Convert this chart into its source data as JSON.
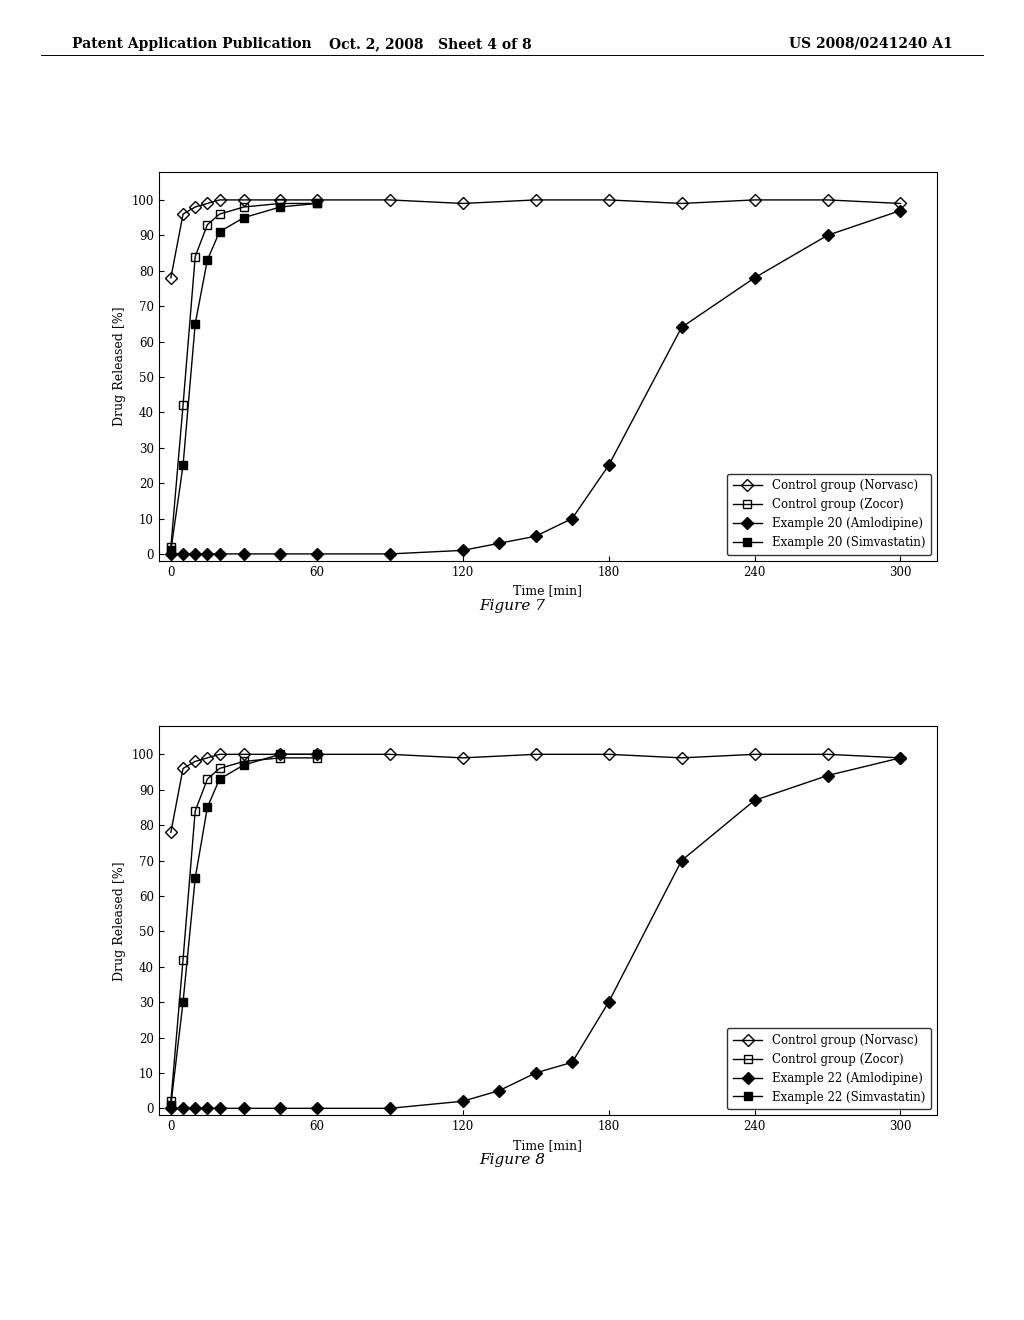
{
  "header_left": "Patent Application Publication",
  "header_center": "Oct. 2, 2008   Sheet 4 of 8",
  "header_right": "US 2008/0241240 A1",
  "fig7": {
    "title": "Figure 7",
    "xlabel": "Time [min]",
    "ylabel": "Drug Released [%]",
    "xlim": [
      -5,
      315
    ],
    "ylim": [
      -2,
      108
    ],
    "xticks": [
      0,
      60,
      120,
      180,
      240,
      300
    ],
    "yticks": [
      0,
      10,
      20,
      30,
      40,
      50,
      60,
      70,
      80,
      90,
      100
    ],
    "series": {
      "norvasc": {
        "label": "Control group (Norvasc)",
        "x": [
          0,
          5,
          10,
          15,
          20,
          30,
          45,
          60,
          90,
          120,
          150,
          180,
          210,
          240,
          270,
          300
        ],
        "y": [
          78,
          96,
          98,
          99,
          100,
          100,
          100,
          100,
          100,
          99,
          100,
          100,
          99,
          100,
          100,
          99
        ],
        "marker": "D",
        "fillstyle": "none",
        "color": "#000000",
        "linewidth": 1.0,
        "markersize": 6
      },
      "zocor": {
        "label": "Control group (Zocor)",
        "x": [
          0,
          5,
          10,
          15,
          20,
          30,
          45,
          60
        ],
        "y": [
          2,
          42,
          84,
          93,
          96,
          98,
          99,
          99
        ],
        "marker": "s",
        "fillstyle": "none",
        "color": "#000000",
        "linewidth": 1.0,
        "markersize": 6
      },
      "amlodipine20": {
        "label": "Example 20 (Amlodipine)",
        "x": [
          0,
          5,
          10,
          15,
          20,
          30,
          45,
          60,
          90,
          120,
          135,
          150,
          165,
          180,
          210,
          240,
          270,
          300
        ],
        "y": [
          0,
          0,
          0,
          0,
          0,
          0,
          0,
          0,
          0,
          1,
          3,
          5,
          10,
          25,
          64,
          78,
          90,
          97
        ],
        "marker": "D",
        "fillstyle": "full",
        "color": "#000000",
        "linewidth": 1.0,
        "markersize": 6
      },
      "simvastatin20": {
        "label": "Example 20 (Simvastatin)",
        "x": [
          0,
          5,
          10,
          15,
          20,
          30,
          45,
          60
        ],
        "y": [
          1,
          25,
          65,
          83,
          91,
          95,
          98,
          99
        ],
        "marker": "s",
        "fillstyle": "full",
        "color": "#000000",
        "linewidth": 1.0,
        "markersize": 6
      }
    }
  },
  "fig8": {
    "title": "Figure 8",
    "xlabel": "Time [min]",
    "ylabel": "Drug Released [%]",
    "xlim": [
      -5,
      315
    ],
    "ylim": [
      -2,
      108
    ],
    "xticks": [
      0,
      60,
      120,
      180,
      240,
      300
    ],
    "yticks": [
      0,
      10,
      20,
      30,
      40,
      50,
      60,
      70,
      80,
      90,
      100
    ],
    "series": {
      "norvasc": {
        "label": "Control group (Norvasc)",
        "x": [
          0,
          5,
          10,
          15,
          20,
          30,
          45,
          60,
          90,
          120,
          150,
          180,
          210,
          240,
          270,
          300
        ],
        "y": [
          78,
          96,
          98,
          99,
          100,
          100,
          100,
          100,
          100,
          99,
          100,
          100,
          99,
          100,
          100,
          99
        ],
        "marker": "D",
        "fillstyle": "none",
        "color": "#000000",
        "linewidth": 1.0,
        "markersize": 6
      },
      "zocor": {
        "label": "Control group (Zocor)",
        "x": [
          0,
          5,
          10,
          15,
          20,
          30,
          45,
          60
        ],
        "y": [
          2,
          42,
          84,
          93,
          96,
          98,
          99,
          99
        ],
        "marker": "s",
        "fillstyle": "none",
        "color": "#000000",
        "linewidth": 1.0,
        "markersize": 6
      },
      "amlodipine22": {
        "label": "Example 22 (Amlodipine)",
        "x": [
          0,
          5,
          10,
          15,
          20,
          30,
          45,
          60,
          90,
          120,
          135,
          150,
          165,
          180,
          210,
          240,
          270,
          300
        ],
        "y": [
          0,
          0,
          0,
          0,
          0,
          0,
          0,
          0,
          0,
          2,
          5,
          10,
          13,
          30,
          70,
          87,
          94,
          99
        ],
        "marker": "D",
        "fillstyle": "full",
        "color": "#000000",
        "linewidth": 1.0,
        "markersize": 6
      },
      "simvastatin22": {
        "label": "Example 22 (Simvastatin)",
        "x": [
          0,
          5,
          10,
          15,
          20,
          30,
          45,
          60
        ],
        "y": [
          1,
          30,
          65,
          85,
          93,
          97,
          100,
          100
        ],
        "marker": "s",
        "fillstyle": "full",
        "color": "#000000",
        "linewidth": 1.0,
        "markersize": 6
      }
    }
  },
  "bg_color": "#ffffff",
  "header_fontsize": 10,
  "axis_label_fontsize": 9,
  "tick_fontsize": 8.5,
  "legend_fontsize": 8.5,
  "caption_fontsize": 11
}
